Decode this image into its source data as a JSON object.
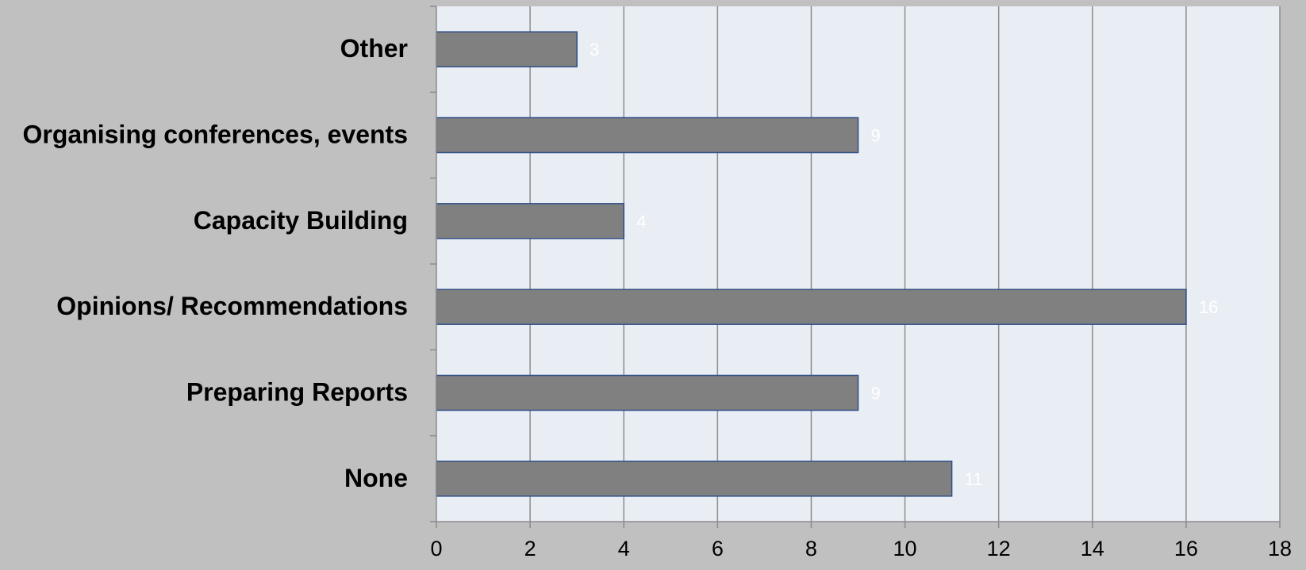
{
  "chart_data": {
    "type": "bar",
    "orientation": "horizontal",
    "categories": [
      "Other",
      "Organising conferences, events",
      "Capacity Building",
      "Opinions/ Recommendations",
      "Preparing Reports",
      "None"
    ],
    "values": [
      3,
      9,
      4,
      16,
      9,
      11
    ],
    "data_labels": [
      "3",
      "9",
      "4",
      "16",
      "9",
      "11"
    ],
    "xlim": [
      0,
      18
    ],
    "x_ticks": [
      0,
      2,
      4,
      6,
      8,
      10,
      12,
      14,
      16,
      18
    ],
    "x_tick_labels": [
      "0",
      "2",
      "4",
      "6",
      "8",
      "10",
      "12",
      "14",
      "16",
      "18"
    ],
    "title": "",
    "xlabel": "",
    "ylabel": "",
    "grid": "vertical",
    "legend": "none"
  },
  "colors": {
    "page_background": "#c0c0c0",
    "plot_background": "#e9edf4",
    "bar_fill": "#808080",
    "bar_stroke": "#2f4f87",
    "gridline": "#8c8c8c",
    "axis": "#8c8c8c",
    "category_label": "#000000",
    "tick_label": "#000000",
    "data_label": "#ffffff"
  }
}
